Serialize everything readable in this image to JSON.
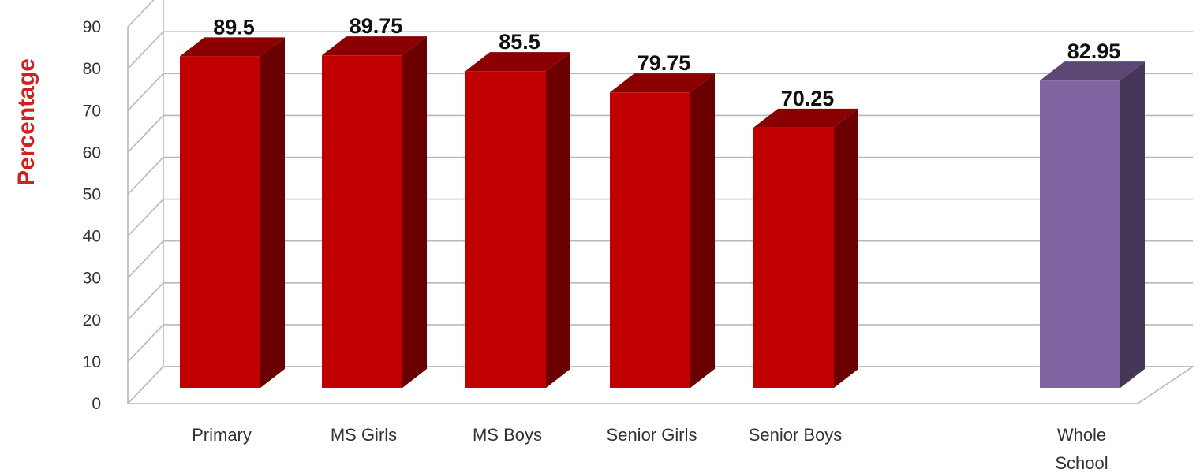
{
  "chart_data": {
    "type": "bar",
    "title": "",
    "xlabel": "",
    "ylabel": "Percentage",
    "ylim": [
      0,
      90
    ],
    "yticks": [
      0,
      10,
      20,
      30,
      40,
      50,
      60,
      70,
      80,
      90
    ],
    "categories": [
      "Primary",
      "MS Girls",
      "MS Boys",
      "Senior Girls",
      "Senior Boys",
      "Whole School"
    ],
    "values": [
      89.5,
      89.75,
      85.5,
      79.75,
      70.25,
      82.95
    ],
    "data_labels": [
      "89.5",
      "89.75",
      "85.5",
      "79.75",
      "70.25",
      "82.95"
    ],
    "colors": [
      "#c00000",
      "#c00000",
      "#c00000",
      "#c00000",
      "#c00000",
      "#8064a2"
    ],
    "grid": true,
    "style": "3d"
  }
}
